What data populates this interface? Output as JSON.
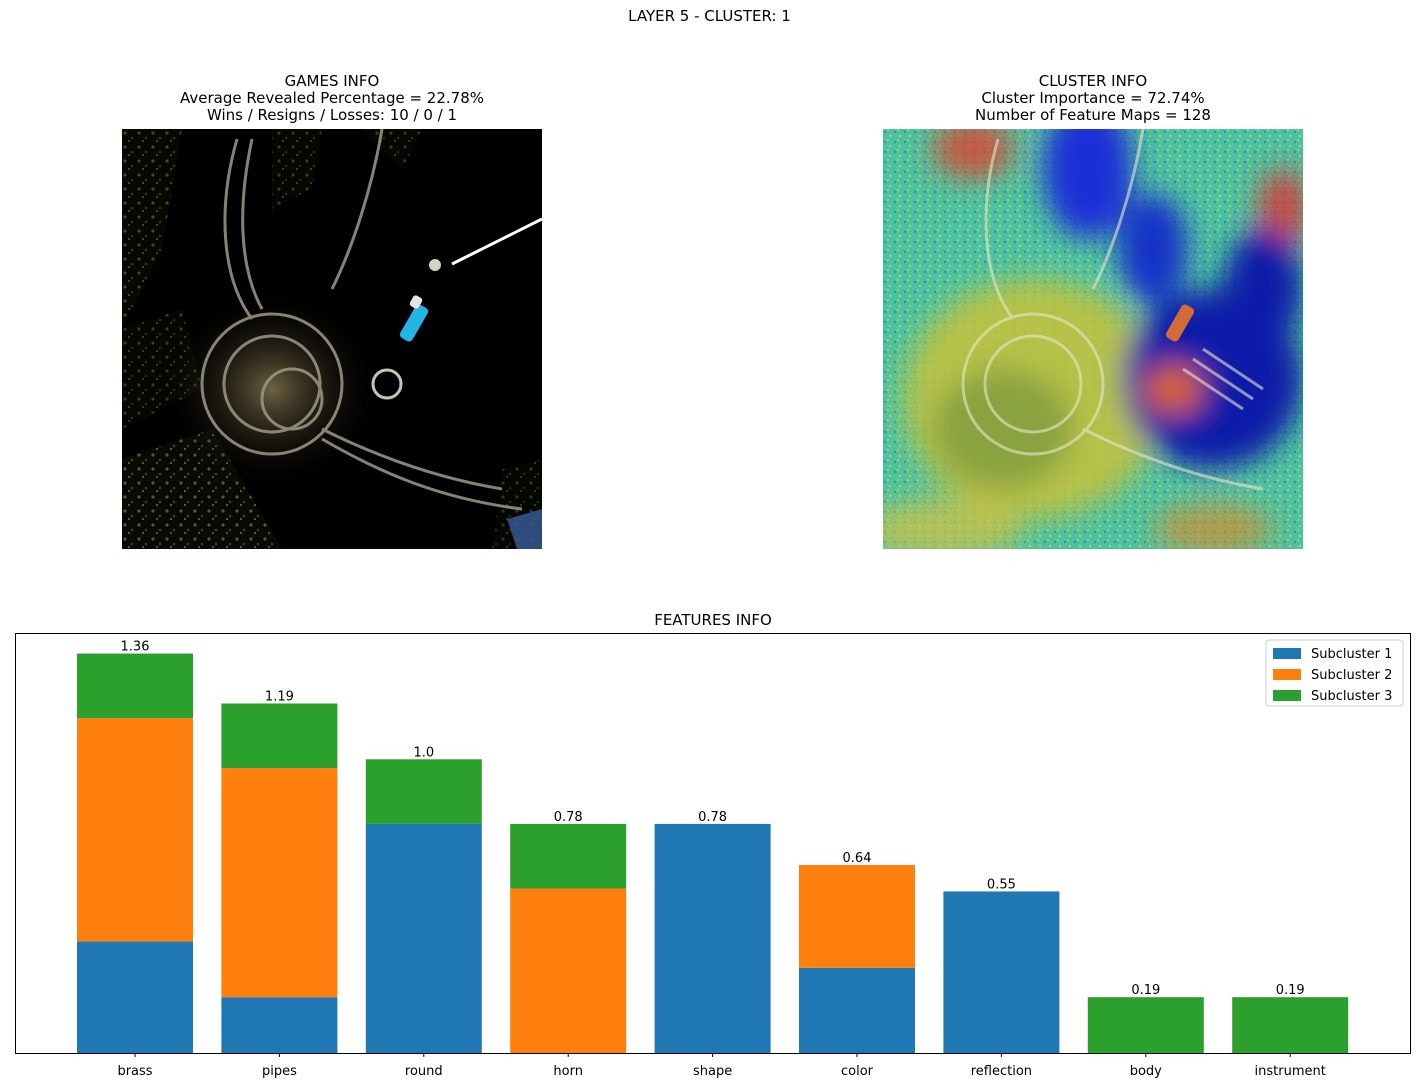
{
  "figure": {
    "suptitle": "LAYER 5 - CLUSTER: 1"
  },
  "games_info": {
    "title": "GAMES INFO",
    "line1": "Average Revealed Percentage = 22.78%",
    "line2": "Wins / Resigns / Losses: 10 / 0 / 1",
    "image": "masked french horn (revealed regions only, rest black)"
  },
  "cluster_info": {
    "title": "CLUSTER INFO",
    "line1": "Cluster Importance = 72.74%",
    "line2": "Number of Feature Maps = 128",
    "image": "french horn with jet-colormap heatmap overlay"
  },
  "colors": {
    "subcluster1": "#1f77b4",
    "subcluster2": "#ff7f0e",
    "subcluster3": "#2ca02c"
  },
  "chart_data": {
    "type": "bar",
    "stacked": true,
    "title": "FEATURES INFO",
    "categories": [
      "brass",
      "pipes",
      "round",
      "horn",
      "shape",
      "color",
      "reflection",
      "body",
      "instrument"
    ],
    "series": [
      {
        "name": "Subcluster 1",
        "values": [
          0.38,
          0.19,
          0.78,
          0.0,
          0.78,
          0.29,
          0.55,
          0.0,
          0.0
        ]
      },
      {
        "name": "Subcluster 2",
        "values": [
          0.76,
          0.78,
          0.0,
          0.56,
          0.0,
          0.35,
          0.0,
          0.0,
          0.0
        ]
      },
      {
        "name": "Subcluster 3",
        "values": [
          0.22,
          0.22,
          0.22,
          0.22,
          0.0,
          0.0,
          0.0,
          0.19,
          0.19
        ]
      }
    ],
    "totals": [
      "1.36",
      "1.19",
      "1.0",
      "0.78",
      "0.78",
      "0.64",
      "0.55",
      "0.19",
      "0.19"
    ],
    "ylim": [
      0,
      1.43
    ],
    "yticks_shown": false,
    "grid": false,
    "legend_position": "top-right"
  }
}
